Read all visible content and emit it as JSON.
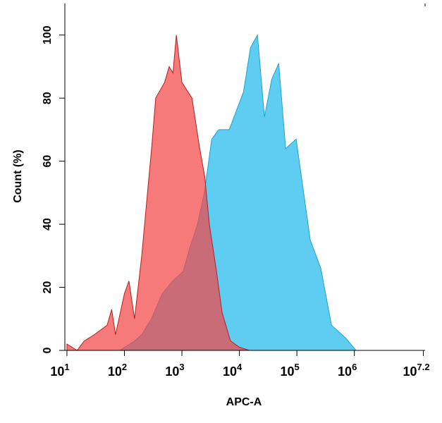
{
  "chart_data": {
    "type": "area",
    "x_label": "APC-A",
    "y_label": "Count  (%)",
    "xscale": "log",
    "xlim": [
      9.2,
      17000000
    ],
    "ylim": [
      0,
      110
    ],
    "xticks": [
      {
        "value": 10,
        "label": "10",
        "exponent": "1"
      },
      {
        "value": 100,
        "label": "10",
        "exponent": "2"
      },
      {
        "value": 1000,
        "label": "10",
        "exponent": "3"
      },
      {
        "value": 10000,
        "label": "10",
        "exponent": "4"
      },
      {
        "value": 100000,
        "label": "10",
        "exponent": "5"
      },
      {
        "value": 1000000,
        "label": "10",
        "exponent": "6"
      },
      {
        "value": 15848932,
        "label": "10",
        "exponent": "7.2"
      }
    ],
    "yticks": [
      0,
      20,
      40,
      60,
      80,
      100
    ],
    "series": [
      {
        "color": "#5fcdf2",
        "stroke": "#1fa3cc",
        "opacity": 1,
        "x": [
          83,
          150,
          200,
          295,
          455,
          690,
          1050,
          1400,
          1870,
          2460,
          3300,
          4370,
          6650,
          11800,
          15600,
          20600,
          27300,
          36500,
          48300,
          63800,
          97000,
          129000,
          171000,
          261000,
          400000,
          700000,
          1070000
        ],
        "values": [
          0,
          3,
          5,
          10,
          18,
          22,
          25,
          33,
          40,
          50,
          67,
          70,
          70,
          82,
          96,
          100,
          74,
          86,
          91,
          64,
          67,
          51,
          35,
          26,
          8,
          4,
          0
        ]
      },
      {
        "color": "#f24646",
        "stroke": "#b51f1f",
        "opacity": 0.72,
        "x": [
          10,
          15,
          20,
          30,
          50,
          60,
          70,
          100,
          120,
          150,
          200,
          300,
          350,
          500,
          600,
          700,
          800,
          1000,
          1500,
          2000,
          2500,
          3000,
          4000,
          5000,
          7000,
          10000,
          15000
        ],
        "values": [
          2,
          0,
          3,
          5,
          8,
          13,
          5,
          18,
          22,
          10,
          30,
          65,
          80,
          85,
          90,
          88,
          100,
          85,
          80,
          65,
          55,
          40,
          25,
          12,
          3,
          1,
          0
        ]
      }
    ]
  }
}
